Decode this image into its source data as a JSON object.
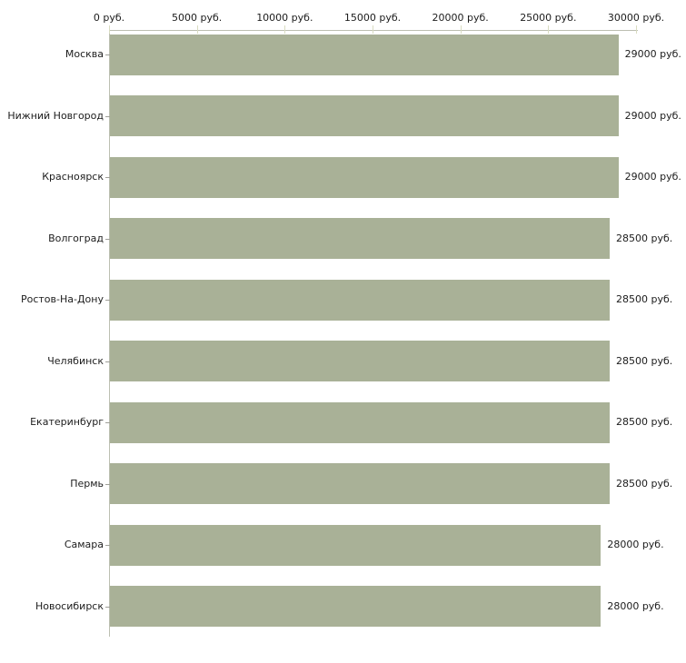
{
  "chart_data": {
    "type": "bar",
    "orientation": "horizontal",
    "title": "",
    "xlabel": "",
    "ylabel": "",
    "unit": "руб.",
    "categories": [
      "Москва",
      "Нижний Новгород",
      "Красноярск",
      "Волгоград",
      "Ростов-На-Дону",
      "Челябинск",
      "Екатеринбург",
      "Пермь",
      "Самара",
      "Новосибирск"
    ],
    "values": [
      29000,
      29000,
      29000,
      28500,
      28500,
      28500,
      28500,
      28500,
      28000,
      28000
    ],
    "value_labels": [
      "29000 руб.",
      "29000 руб.",
      "29000 руб.",
      "28500 руб.",
      "28500 руб.",
      "28500 руб.",
      "28500 руб.",
      "28500 руб.",
      "28000 руб.",
      "28000 руб."
    ],
    "x_axis": {
      "position": "top",
      "range": [
        0,
        30000
      ],
      "ticks": [
        0,
        5000,
        10000,
        15000,
        20000,
        25000,
        30000
      ],
      "tick_labels": [
        "0 руб.",
        "5000 руб.",
        "10000 руб.",
        "15000 руб.",
        "20000 руб.",
        "25000 руб.",
        "30000 руб."
      ]
    },
    "grid": false,
    "legend": false,
    "colors": {
      "bar": "#a9b197",
      "axis_line": "#bcbfb1",
      "axis_tick": "#d9dcc1",
      "category_tick": "#9f9f98",
      "text": "#1c1c1c",
      "background": "#ffffff"
    }
  }
}
